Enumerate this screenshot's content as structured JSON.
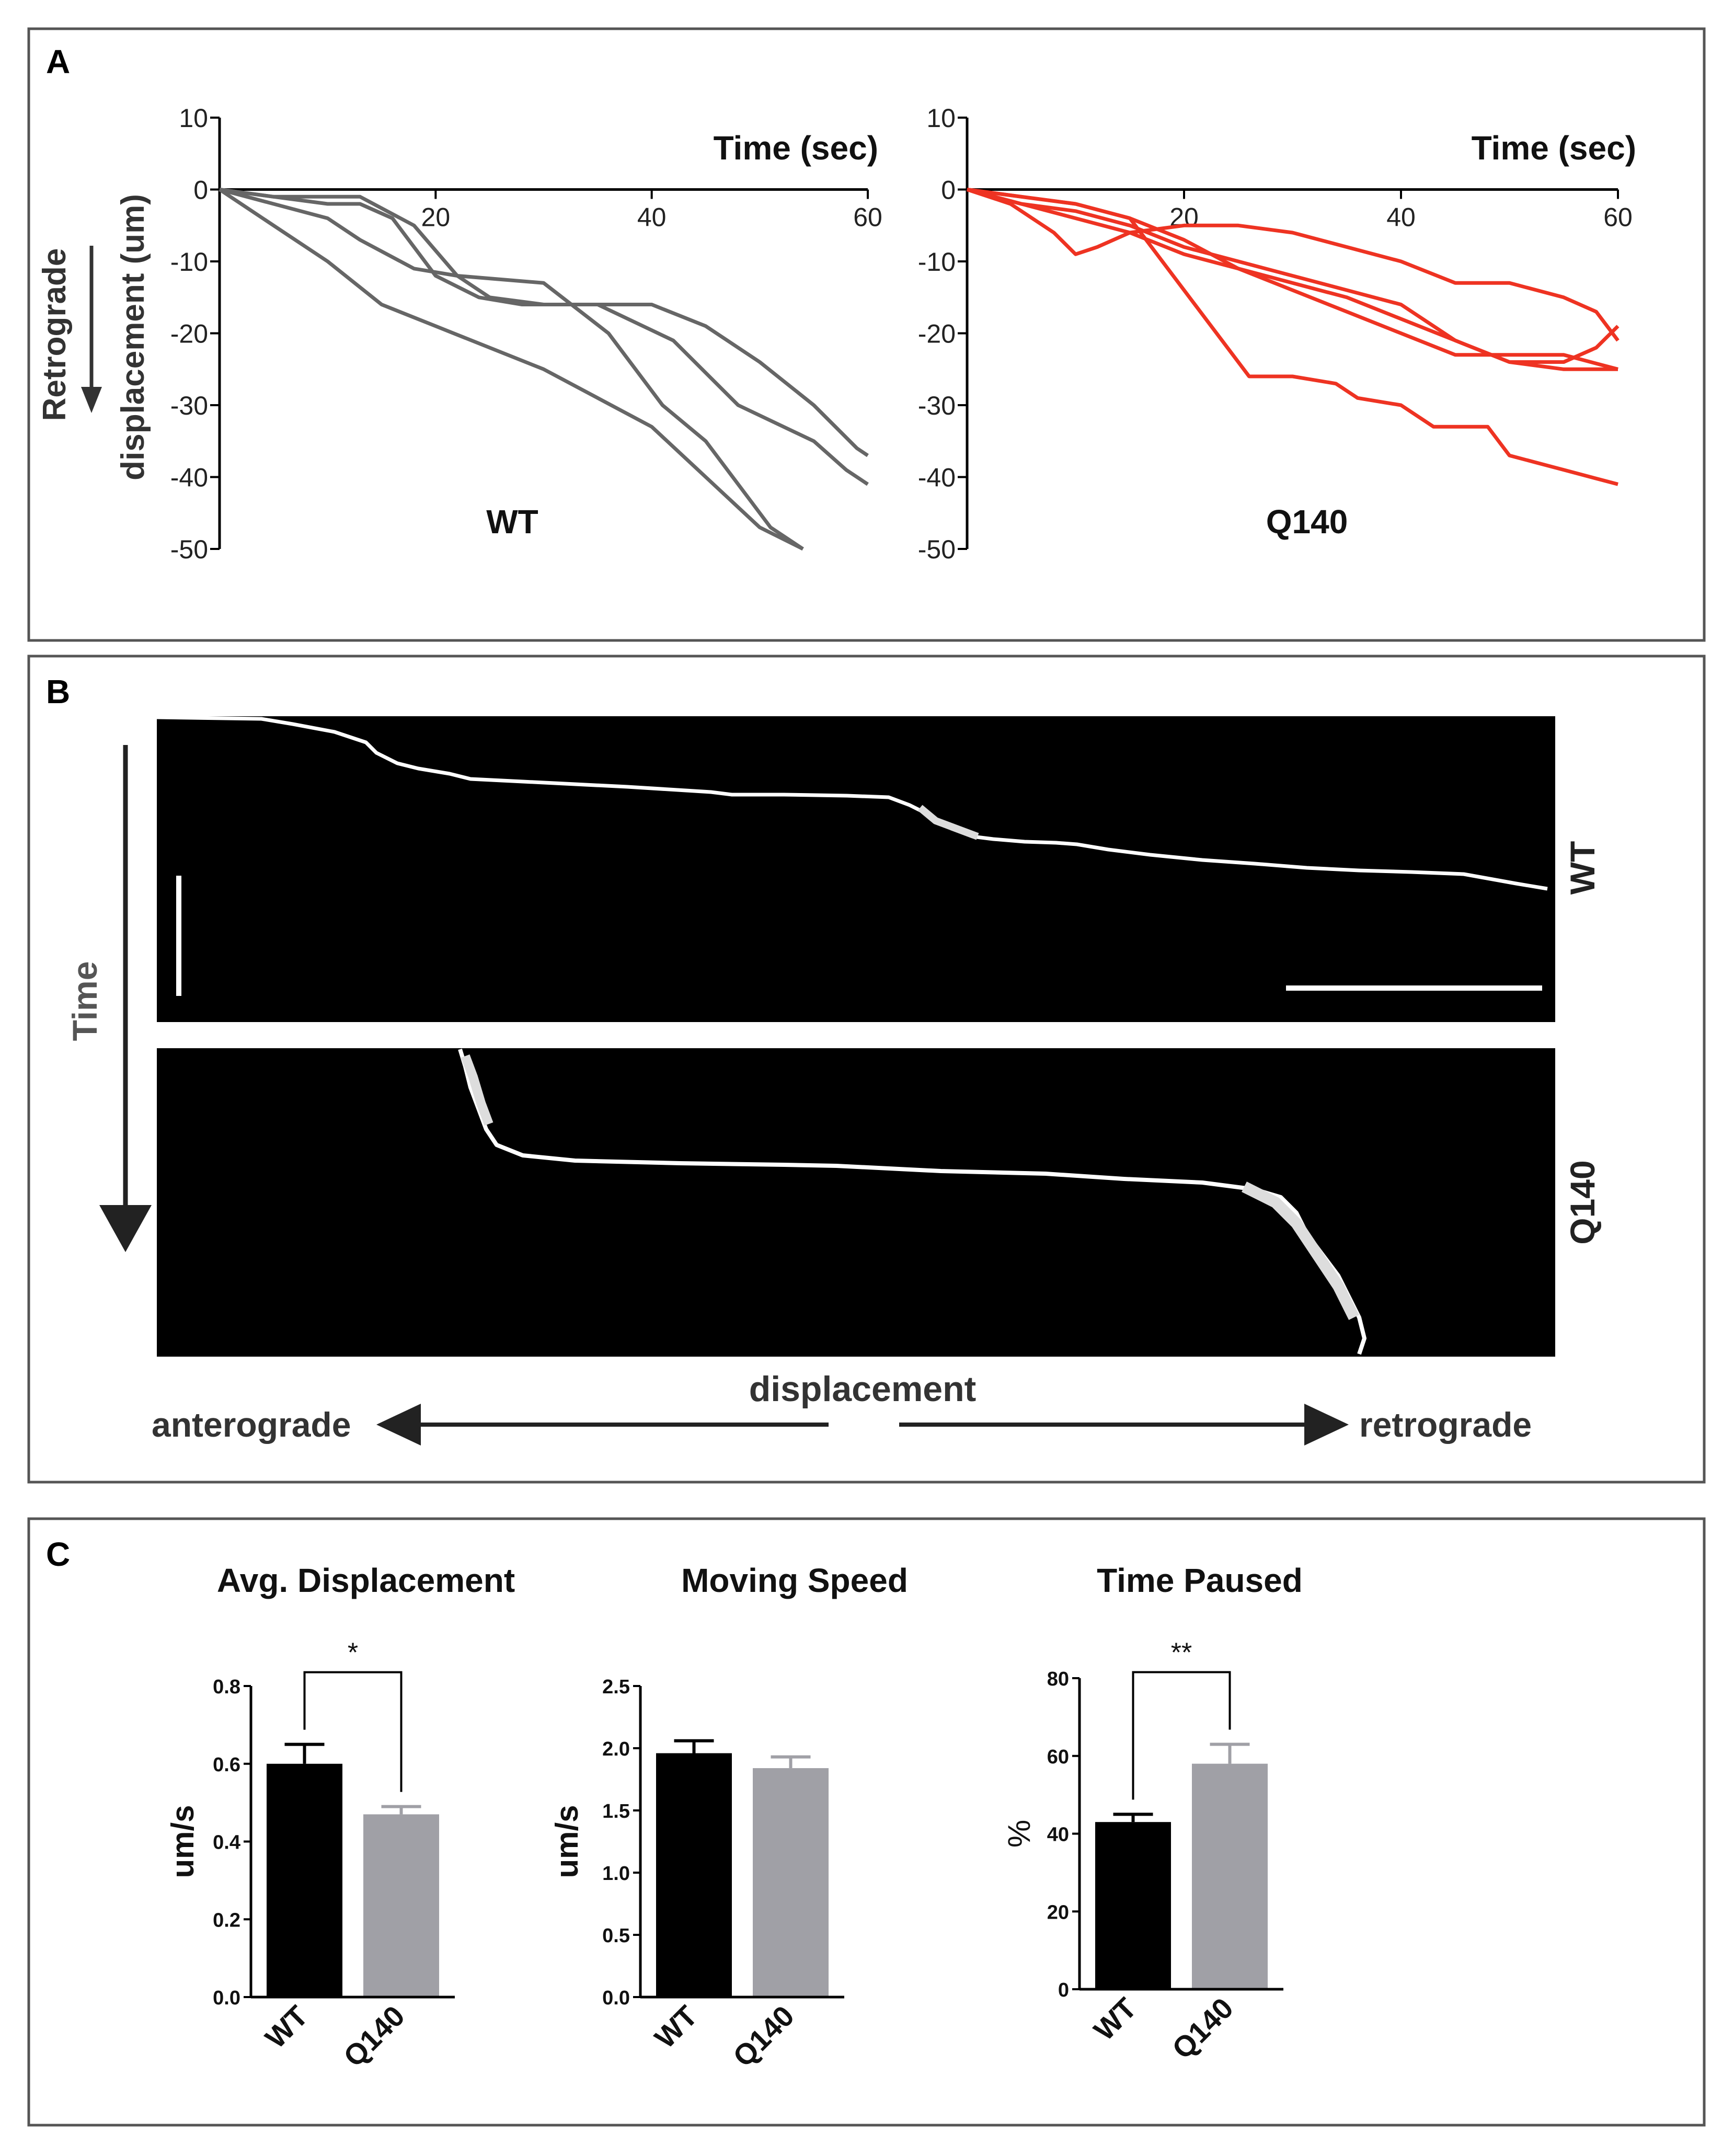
{
  "panels": {
    "A": {
      "label": "A",
      "ylabel_line1": "Retrograde",
      "ylabel_line2": "displacement  (um)",
      "charts": [
        {
          "title": "WT",
          "xlabel": "Time (sec)",
          "color": "#666666",
          "type": "line",
          "xlim": [
            0,
            60
          ],
          "ylim": [
            -50,
            10
          ],
          "xticks": [
            "20",
            "40",
            "60"
          ],
          "yticks": [
            "10",
            "0",
            "-10",
            "-20",
            "-30",
            "-40",
            "-50"
          ],
          "series": [
            {
              "name": "WT track 1",
              "points": [
                [
                  0,
                  0
                ],
                [
                  5,
                  -5
                ],
                [
                  10,
                  -10
                ],
                [
                  15,
                  -16
                ],
                [
                  20,
                  -19
                ],
                [
                  30,
                  -25
                ],
                [
                  40,
                  -33
                ],
                [
                  45,
                  -40
                ],
                [
                  50,
                  -47
                ],
                [
                  54,
                  -50
                ]
              ]
            },
            {
              "name": "WT track 2",
              "points": [
                [
                  0,
                  0
                ],
                [
                  5,
                  -2
                ],
                [
                  10,
                  -4
                ],
                [
                  13,
                  -7
                ],
                [
                  18,
                  -11
                ],
                [
                  22,
                  -12
                ],
                [
                  30,
                  -13
                ],
                [
                  36,
                  -20
                ],
                [
                  41,
                  -30
                ],
                [
                  45,
                  -35
                ],
                [
                  49,
                  -43
                ],
                [
                  51,
                  -47
                ],
                [
                  54,
                  -50
                ]
              ]
            },
            {
              "name": "WT track 3",
              "points": [
                [
                  0,
                  0
                ],
                [
                  5,
                  -1
                ],
                [
                  10,
                  -1
                ],
                [
                  13,
                  -1
                ],
                [
                  18,
                  -5
                ],
                [
                  22,
                  -12
                ],
                [
                  25,
                  -15
                ],
                [
                  30,
                  -16
                ],
                [
                  35,
                  -16
                ],
                [
                  40,
                  -16
                ],
                [
                  45,
                  -19
                ],
                [
                  50,
                  -24
                ],
                [
                  55,
                  -30
                ],
                [
                  59,
                  -36
                ],
                [
                  60,
                  -37
                ]
              ]
            },
            {
              "name": "WT track 4",
              "points": [
                [
                  0,
                  0
                ],
                [
                  5,
                  -1
                ],
                [
                  10,
                  -2
                ],
                [
                  13,
                  -2
                ],
                [
                  16,
                  -4
                ],
                [
                  20,
                  -12
                ],
                [
                  24,
                  -15
                ],
                [
                  28,
                  -16
                ],
                [
                  35,
                  -16
                ],
                [
                  42,
                  -21
                ],
                [
                  48,
                  -30
                ],
                [
                  55,
                  -35
                ],
                [
                  58,
                  -39
                ],
                [
                  60,
                  -41
                ]
              ]
            }
          ]
        },
        {
          "title": "Q140",
          "xlabel": "Time (sec)",
          "color": "#ee3322",
          "type": "line",
          "xlim": [
            0,
            60
          ],
          "ylim": [
            -50,
            10
          ],
          "xticks": [
            "20",
            "40",
            "60"
          ],
          "yticks": [
            "10",
            "0",
            "-10",
            "-20",
            "-30",
            "-40",
            "-50"
          ],
          "series": [
            {
              "name": "Q140 track 1",
              "points": [
                [
                  0,
                  0
                ],
                [
                  4,
                  -2
                ],
                [
                  8,
                  -6
                ],
                [
                  10,
                  -9
                ],
                [
                  12,
                  -8
                ],
                [
                  15,
                  -6
                ],
                [
                  20,
                  -5
                ],
                [
                  25,
                  -5
                ],
                [
                  30,
                  -6
                ],
                [
                  35,
                  -8
                ],
                [
                  40,
                  -10
                ],
                [
                  45,
                  -13
                ],
                [
                  50,
                  -13
                ],
                [
                  55,
                  -15
                ],
                [
                  58,
                  -17
                ],
                [
                  60,
                  -21
                ]
              ]
            },
            {
              "name": "Q140 track 2",
              "points": [
                [
                  0,
                  0
                ],
                [
                  5,
                  -2
                ],
                [
                  10,
                  -3
                ],
                [
                  15,
                  -5
                ],
                [
                  20,
                  -8
                ],
                [
                  25,
                  -10
                ],
                [
                  30,
                  -12
                ],
                [
                  35,
                  -14
                ],
                [
                  40,
                  -16
                ],
                [
                  45,
                  -21
                ],
                [
                  50,
                  -24
                ],
                [
                  55,
                  -24
                ],
                [
                  58,
                  -22
                ],
                [
                  60,
                  -19
                ]
              ]
            },
            {
              "name": "Q140 track 3",
              "points": [
                [
                  0,
                  0
                ],
                [
                  5,
                  -1
                ],
                [
                  10,
                  -2
                ],
                [
                  15,
                  -4
                ],
                [
                  20,
                  -7
                ],
                [
                  25,
                  -11
                ],
                [
                  30,
                  -14
                ],
                [
                  35,
                  -17
                ],
                [
                  40,
                  -20
                ],
                [
                  45,
                  -23
                ],
                [
                  50,
                  -23
                ],
                [
                  55,
                  -23
                ],
                [
                  60,
                  -25
                ]
              ]
            },
            {
              "name": "Q140 track 4",
              "points": [
                [
                  0,
                  0
                ],
                [
                  5,
                  -2
                ],
                [
                  10,
                  -4
                ],
                [
                  15,
                  -6
                ],
                [
                  20,
                  -9
                ],
                [
                  25,
                  -11
                ],
                [
                  30,
                  -13
                ],
                [
                  35,
                  -15
                ],
                [
                  40,
                  -18
                ],
                [
                  45,
                  -21
                ],
                [
                  50,
                  -24
                ],
                [
                  55,
                  -25
                ],
                [
                  60,
                  -25
                ]
              ]
            },
            {
              "name": "Q140 track 5",
              "points": [
                [
                  0,
                  0
                ],
                [
                  5,
                  -1
                ],
                [
                  10,
                  -2
                ],
                [
                  15,
                  -4
                ],
                [
                  18,
                  -10
                ],
                [
                  22,
                  -18
                ],
                [
                  26,
                  -26
                ],
                [
                  30,
                  -26
                ],
                [
                  34,
                  -27
                ],
                [
                  36,
                  -29
                ],
                [
                  40,
                  -30
                ],
                [
                  43,
                  -33
                ],
                [
                  48,
                  -33
                ],
                [
                  50,
                  -37
                ],
                [
                  55,
                  -39
                ],
                [
                  60,
                  -41
                ]
              ]
            }
          ]
        }
      ]
    },
    "B": {
      "label": "B",
      "time_label": "Time",
      "displacement_label": "displacement",
      "anterograde_label": "anterograde",
      "retrograde_label": "retrograde",
      "kymographs": [
        {
          "label": "WT"
        },
        {
          "label": "Q140"
        }
      ]
    },
    "C": {
      "label": "C",
      "charts": [
        {
          "type": "bar",
          "title": "Avg. Displacement",
          "ylabel": "um/s",
          "categories": [
            "WT",
            "Q140"
          ],
          "values": [
            0.6,
            0.47
          ],
          "errors": [
            0.05,
            0.02
          ],
          "ylim": [
            0,
            0.8
          ],
          "yticks": [
            "0.0",
            "0.2",
            "0.4",
            "0.6",
            "0.8"
          ],
          "significance": "*",
          "colors": [
            "#000000",
            "#a0a0a6"
          ]
        },
        {
          "type": "bar",
          "title": "Moving Speed",
          "ylabel": "um/s",
          "categories": [
            "WT",
            "Q140"
          ],
          "values": [
            1.96,
            1.84
          ],
          "errors": [
            0.1,
            0.09
          ],
          "ylim": [
            0,
            2.5
          ],
          "yticks": [
            "0.0",
            "0.5",
            "1.0",
            "1.5",
            "2.0",
            "2.5"
          ],
          "significance": "",
          "colors": [
            "#000000",
            "#a0a0a6"
          ]
        },
        {
          "type": "bar",
          "title": "Time Paused",
          "ylabel": "%",
          "categories": [
            "WT",
            "Q140"
          ],
          "values": [
            43,
            58
          ],
          "errors": [
            2,
            5
          ],
          "ylim": [
            0,
            80
          ],
          "yticks": [
            "0",
            "20",
            "40",
            "60",
            "80"
          ],
          "significance": "**",
          "colors": [
            "#000000",
            "#a0a0a6"
          ]
        }
      ]
    }
  }
}
